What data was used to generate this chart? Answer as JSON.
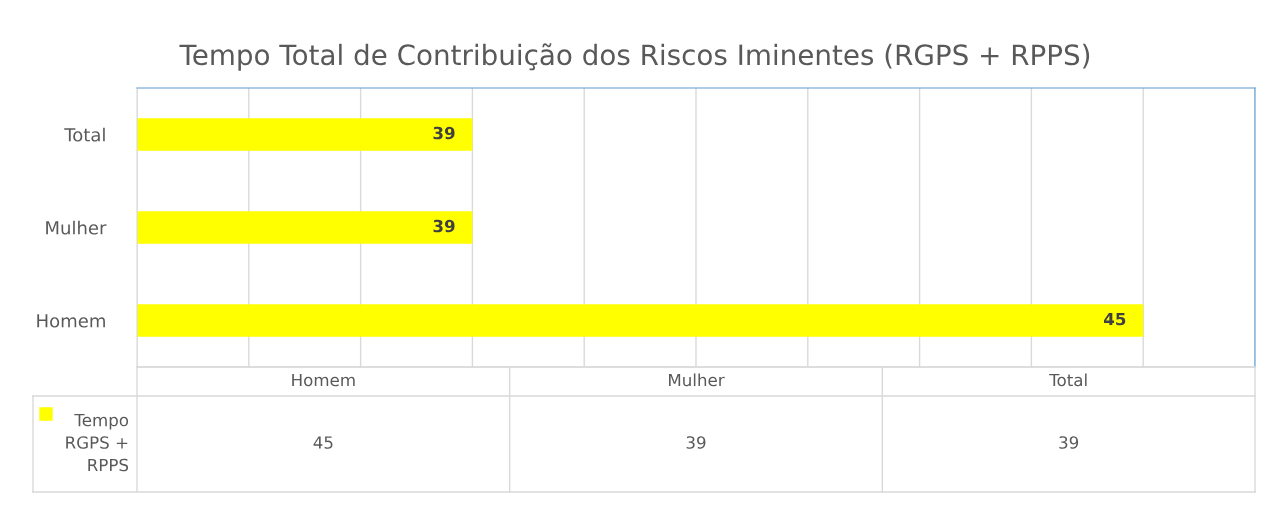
{
  "chart_data": {
    "type": "bar",
    "orientation": "horizontal",
    "title": "Tempo Total de Contribuição dos Riscos Iminentes (RGPS + RPPS)",
    "categories": [
      "Total",
      "Mulher",
      "Homem"
    ],
    "series": [
      {
        "name": "Tempo RGPS + RPPS",
        "color": "#ffff00",
        "values": [
          39,
          39,
          45
        ]
      }
    ],
    "annotations": [
      "45",
      "39",
      "39"
    ],
    "xlim": [
      36,
      46
    ],
    "xticks": [
      {
        "value": 36,
        "label": null
      },
      {
        "value": 37,
        "label": null
      },
      {
        "value": 38,
        "label": null
      },
      {
        "value": 39,
        "label": null
      },
      {
        "value": 40,
        "label": null
      },
      {
        "value": 41,
        "label": null
      },
      {
        "value": 42,
        "label": null
      },
      {
        "value": 43,
        "label": null
      },
      {
        "value": 44,
        "label": null
      },
      {
        "value": 45,
        "label": null
      },
      {
        "value": 46,
        "label": null
      }
    ],
    "tick_labels": "y",
    "grid": "x",
    "data_labels": true,
    "legend": "bottom"
  }
}
